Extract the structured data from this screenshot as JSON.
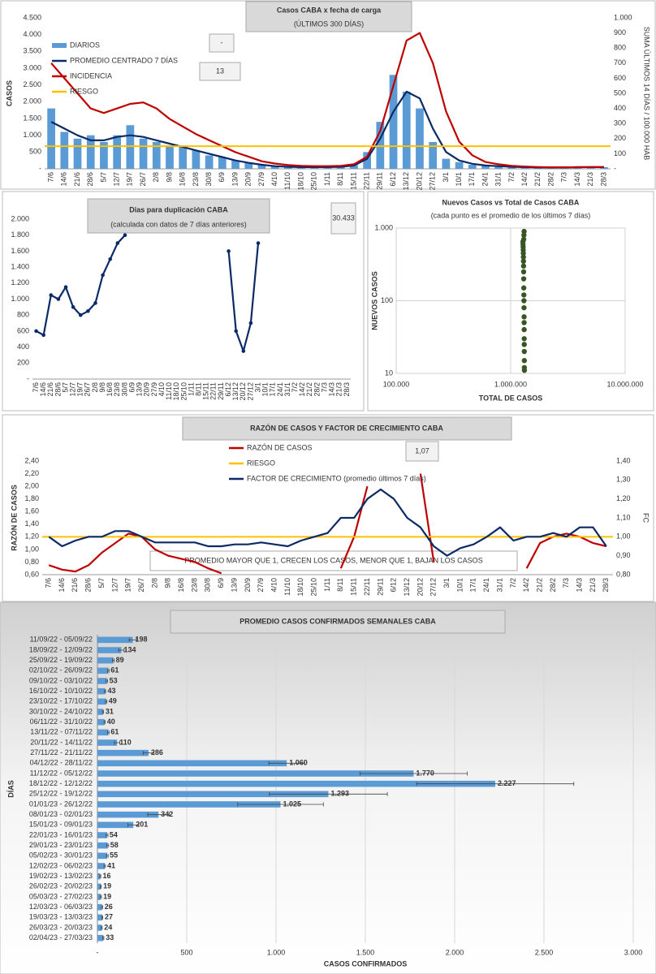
{
  "chart_data": [
    {
      "type": "bar-line",
      "title": "Casos CABA x fecha de carga",
      "subtitle": "(ÚLTIMOS 300 DÍAS)",
      "y_label": "CASOS",
      "y2_label": "SUMA ÚLTIMOS 14 DÍAS / 100.000 HAB",
      "annotations": [
        "-",
        "13"
      ],
      "legend": true,
      "grid": false,
      "categories": [
        "7/6",
        "14/6",
        "21/6",
        "28/6",
        "5/7",
        "12/7",
        "19/7",
        "26/7",
        "2/8",
        "9/8",
        "16/8",
        "23/8",
        "30/8",
        "6/9",
        "13/9",
        "20/9",
        "27/9",
        "4/10",
        "11/10",
        "18/10",
        "25/10",
        "1/11",
        "8/11",
        "15/11",
        "22/11",
        "29/11",
        "6/12",
        "13/12",
        "20/12",
        "27/12",
        "3/1",
        "10/1",
        "17/1",
        "24/1",
        "31/1",
        "7/2",
        "14/2",
        "21/2",
        "28/2",
        "7/3",
        "14/3",
        "21/3",
        "28/3"
      ],
      "series": [
        {
          "name": "DIARIOS",
          "type": "bar",
          "color": "#5b9bd5",
          "values": [
            1800,
            1100,
            900,
            1000,
            800,
            1000,
            1300,
            900,
            800,
            700,
            700,
            550,
            400,
            350,
            250,
            180,
            130,
            80,
            60,
            50,
            50,
            55,
            70,
            120,
            500,
            1400,
            2800,
            2300,
            1800,
            800,
            300,
            200,
            120,
            90,
            70,
            60,
            45,
            40,
            40,
            40,
            60,
            50,
            50
          ]
        },
        {
          "name": "PROMEDIO CENTRADO 7 DÍAS",
          "color": "#0b2a66",
          "values": [
            1400,
            1200,
            1000,
            850,
            850,
            950,
            1000,
            950,
            850,
            750,
            650,
            550,
            450,
            350,
            250,
            180,
            120,
            80,
            60,
            50,
            50,
            50,
            60,
            100,
            300,
            900,
            1700,
            2300,
            2100,
            1200,
            500,
            250,
            150,
            100,
            80,
            60,
            50,
            40,
            40,
            40,
            50,
            50,
            50
          ]
        },
        {
          "name": "INCIDENCIA",
          "color": "#c00000",
          "axis": "y2",
          "values": [
            700,
            600,
            500,
            400,
            370,
            400,
            430,
            440,
            400,
            330,
            280,
            230,
            190,
            150,
            110,
            80,
            50,
            35,
            25,
            20,
            18,
            18,
            20,
            30,
            80,
            250,
            550,
            850,
            900,
            700,
            380,
            180,
            90,
            45,
            30,
            20,
            15,
            12,
            10,
            10,
            10,
            12,
            12
          ]
        },
        {
          "name": "RIESGO",
          "color": "#ffc000",
          "axis": "y2",
          "value": 150
        }
      ],
      "ylim": [
        0,
        4500
      ],
      "yticks": [
        {
          "value": 0,
          "label": "-"
        },
        500,
        {
          "value": 1000,
          "label": "1.000"
        },
        {
          "value": 1500,
          "label": "1.500"
        },
        {
          "value": 2000,
          "label": "2.000"
        },
        {
          "value": 2500,
          "label": "2.500"
        },
        {
          "value": 3000,
          "label": "3.000"
        },
        {
          "value": 3500,
          "label": "3.500"
        },
        {
          "value": 4000,
          "label": "4.000"
        },
        {
          "value": 4500,
          "label": "4.500"
        }
      ],
      "y2lim": [
        0,
        1000
      ],
      "y2ticks": [
        {
          "value": 0,
          "label": "-"
        },
        100,
        200,
        300,
        400,
        500,
        600,
        700,
        800,
        900,
        {
          "value": 1000,
          "label": "1.000"
        }
      ]
    },
    {
      "type": "line",
      "title": "Dias para duplicación CABA",
      "subtitle": "(calculada con datos de 7 días anteriores)",
      "annotations": [
        "30.433"
      ],
      "grid": false,
      "categories": [
        "7/6",
        "14/6",
        "21/6",
        "28/6",
        "5/7",
        "12/7",
        "19/7",
        "26/7",
        "2/8",
        "9/8",
        "16/8",
        "23/8",
        "30/8",
        "6/9",
        "13/9",
        "20/9",
        "27/9",
        "4/10",
        "11/10",
        "18/10",
        "25/10",
        "1/11",
        "8/11",
        "15/11",
        "22/11",
        "29/11",
        "6/12",
        "13/12",
        "20/12",
        "27/12",
        "3/1",
        "10/1",
        "17/1",
        "24/1",
        "31/1",
        "7/2",
        "14/2",
        "21/2",
        "28/2",
        "7/3",
        "14/3",
        "21/3",
        "28/3"
      ],
      "series": [
        {
          "name": null,
          "color": "#0b2a66",
          "markers": true,
          "values": [
            600,
            550,
            1050,
            1000,
            1150,
            900,
            800,
            850,
            950,
            1300,
            1500,
            1700,
            1800,
            null,
            null,
            null,
            null,
            null,
            null,
            null,
            null,
            null,
            null,
            null,
            null,
            null,
            1600,
            600,
            350,
            700,
            1700,
            null,
            null,
            null,
            null,
            null,
            null,
            null,
            null,
            null,
            null,
            null,
            null
          ]
        }
      ],
      "ylim": [
        0,
        2000
      ],
      "yticks": [
        {
          "value": 0,
          "label": "-"
        },
        200,
        400,
        600,
        800,
        {
          "value": 1000,
          "label": "1.000"
        },
        {
          "value": 1200,
          "label": "1.200"
        },
        {
          "value": 1400,
          "label": "1.400"
        },
        {
          "value": 1600,
          "label": "1.600"
        },
        {
          "value": 1800,
          "label": "1.800"
        },
        {
          "value": 2000,
          "label": "2.000"
        }
      ]
    },
    {
      "type": "scatter",
      "title": "Nuevos Casos vs Total de Casos CABA",
      "subtitle": "(cada punto es el promedio de los últimos 7 días)",
      "x_label": "TOTAL DE CASOS",
      "y_label": "NUEVOS CASOS",
      "log_x": true,
      "log_y": true,
      "grid": true,
      "color": "#375623",
      "x": [
        1280000,
        1282000,
        1285000,
        1287000,
        1290000,
        1292000,
        1294000,
        1296000,
        1298000,
        1300000,
        1302000,
        1304000,
        1306000,
        1308000,
        1310000,
        1311000,
        1312000,
        1313000,
        1314000,
        1315000,
        1316000,
        1317000,
        1318000,
        1300000,
        1305000,
        1310000
      ],
      "y": [
        650,
        600,
        550,
        500,
        450,
        400,
        350,
        300,
        250,
        200,
        150,
        120,
        100,
        80,
        60,
        50,
        40,
        30,
        25,
        20,
        15,
        12,
        11,
        700,
        800,
        900
      ],
      "xlim": [
        100000,
        10000000
      ],
      "xticks": [
        {
          "value": 100000,
          "label": "100.000"
        },
        {
          "value": 1000000,
          "label": "1.000.000"
        },
        {
          "value": 10000000,
          "label": "10.000.000"
        }
      ],
      "ylim": [
        10,
        1000
      ],
      "yticks": [
        10,
        100,
        {
          "value": 1000,
          "label": "1.000"
        }
      ]
    },
    {
      "type": "line",
      "title": "RAZÓN DE CASOS Y FACTOR DE CRECIMIENTO CABA",
      "y_label": "RAZÓN DE CASOS",
      "y2_label": "FC",
      "annotations": [
        "1,07",
        "PROMEDIO MAYOR QUE 1, CRECEN LOS CASOS, MENOR QUE 1, BAJAN LOS CASOS"
      ],
      "legend": true,
      "grid": false,
      "categories": [
        "7/6",
        "14/6",
        "21/6",
        "28/6",
        "5/7",
        "12/7",
        "19/7",
        "26/7",
        "2/8",
        "9/8",
        "16/8",
        "23/8",
        "30/8",
        "6/9",
        "13/9",
        "20/9",
        "27/9",
        "4/10",
        "11/10",
        "18/10",
        "25/10",
        "1/11",
        "8/11",
        "15/11",
        "22/11",
        "29/11",
        "6/12",
        "13/12",
        "20/12",
        "27/12",
        "3/1",
        "10/1",
        "17/1",
        "24/1",
        "31/1",
        "7/2",
        "14/2",
        "21/2",
        "28/2",
        "7/3",
        "14/3",
        "21/3",
        "28/3"
      ],
      "series": [
        {
          "name": "RAZÓN DE CASOS",
          "color": "#c00000",
          "values": [
            0.75,
            0.68,
            0.65,
            0.75,
            0.95,
            1.1,
            1.25,
            1.2,
            1.0,
            0.9,
            0.85,
            0.8,
            0.7,
            0.62,
            null,
            null,
            null,
            null,
            null,
            null,
            null,
            null,
            0.7,
            1.2,
            2.0,
            null,
            null,
            null,
            2.2,
            0.8,
            null,
            null,
            null,
            null,
            null,
            null,
            0.7,
            1.1,
            1.2,
            1.25,
            1.2,
            1.1,
            1.05
          ]
        },
        {
          "name": "RIESGO",
          "color": "#ffc000",
          "value": 1.2
        },
        {
          "name": "FACTOR DE CRECIMIENTO (promedio últimos 7 días)",
          "color": "#0b2a66",
          "axis": "y2",
          "values": [
            1.0,
            0.95,
            0.98,
            1.0,
            1.0,
            1.03,
            1.03,
            1.0,
            0.97,
            0.97,
            0.97,
            0.97,
            0.95,
            0.95,
            0.96,
            0.96,
            0.97,
            0.96,
            0.95,
            0.98,
            1.0,
            1.02,
            1.1,
            1.1,
            1.2,
            1.25,
            1.2,
            1.1,
            1.05,
            0.95,
            0.9,
            0.94,
            0.96,
            1.0,
            1.05,
            0.98,
            1.0,
            1.0,
            1.02,
            1.0,
            1.05,
            1.05,
            0.95
          ]
        }
      ],
      "ylim": [
        0.6,
        2.4
      ],
      "yticks": [
        {
          "value": 0.6,
          "label": "0,60"
        },
        {
          "value": 0.8,
          "label": "0,80"
        },
        {
          "value": 1.0,
          "label": "1,00"
        },
        {
          "value": 1.2,
          "label": "1,20"
        },
        {
          "value": 1.4,
          "label": "1,40"
        },
        {
          "value": 1.6,
          "label": "1,60"
        },
        {
          "value": 1.8,
          "label": "1,80"
        },
        {
          "value": 2.0,
          "label": "2,00"
        },
        {
          "value": 2.2,
          "label": "2,20"
        },
        {
          "value": 2.4,
          "label": "2,40"
        }
      ],
      "y2lim": [
        0.8,
        1.4
      ],
      "y2ticks": [
        {
          "value": 0.8,
          "label": "0,80"
        },
        {
          "value": 0.9,
          "label": "0,90"
        },
        {
          "value": 1.0,
          "label": "1,00"
        },
        {
          "value": 1.1,
          "label": "1,10"
        },
        {
          "value": 1.2,
          "label": "1,20"
        },
        {
          "value": 1.3,
          "label": "1,30"
        },
        {
          "value": 1.4,
          "label": "1,40"
        }
      ]
    },
    {
      "type": "barh",
      "title": "PROMEDIO CASOS CONFIRMADOS SEMANALES CABA",
      "x_label": "CASOS CONFIRMADOS",
      "y_label": "DÍAS",
      "grid": true,
      "color": "#5b9bd5",
      "categories": [
        "11/09/22 - 05/09/22",
        "18/09/22 - 12/09/22",
        "25/09/22 - 19/09/22",
        "02/10/22 - 26/09/22",
        "09/10/22 - 03/10/22",
        "16/10/22 - 10/10/22",
        "23/10/22 - 17/10/22",
        "30/10/22 - 24/10/22",
        "06/11/22 - 31/10/22",
        "13/11/22 - 07/11/22",
        "20/11/22 - 14/11/22",
        "27/11/22 - 21/11/22",
        "04/12/22 - 28/11/22",
        "11/12/22 - 05/12/22",
        "18/12/22 - 12/12/22",
        "25/12/22 - 19/12/22",
        "01/01/23 - 26/12/22",
        "08/01/23 - 02/01/23",
        "15/01/23 - 09/01/23",
        "22/01/23 - 16/01/23",
        "29/01/23 - 23/01/23",
        "05/02/23 - 30/01/23",
        "12/02/23 - 06/02/23",
        "19/02/23 - 13/02/23",
        "26/02/23 - 20/02/23",
        "05/03/23 - 27/02/23",
        "12/03/23 - 06/03/23",
        "19/03/23 - 13/03/23",
        "26/03/23 - 20/03/23",
        "02/04/23 - 27/03/23"
      ],
      "values": [
        198,
        134,
        89,
        61,
        53,
        43,
        49,
        31,
        40,
        61,
        110,
        286,
        1060,
        1770,
        2227,
        1293,
        1025,
        342,
        201,
        54,
        58,
        55,
        41,
        16,
        19,
        19,
        26,
        27,
        24,
        33
      ],
      "value_labels": [
        "198",
        "134",
        "89",
        "61",
        "53",
        "43",
        "49",
        "31",
        "40",
        "61",
        "110",
        "286",
        "1.060",
        "1.770",
        "2.227",
        "1.293",
        "1.025",
        "342",
        "201",
        "54",
        "58",
        "55",
        "41",
        "16",
        "19",
        "19",
        "26",
        "27",
        "24",
        "33"
      ],
      "errors": [
        20,
        15,
        5,
        4,
        4,
        3,
        4,
        3,
        3,
        4,
        15,
        30,
        100,
        300,
        440,
        330,
        240,
        60,
        30,
        5,
        5,
        5,
        4,
        3,
        3,
        4,
        3,
        3,
        3,
        3
      ],
      "xlim": [
        0,
        3000
      ],
      "xticks": [
        {
          "value": 0,
          "label": "-"
        },
        500,
        {
          "value": 1000,
          "label": "1.000"
        },
        {
          "value": 1500,
          "label": "1.500"
        },
        {
          "value": 2000,
          "label": "2.000"
        },
        {
          "value": 2500,
          "label": "2.500"
        },
        {
          "value": 3000,
          "label": "3.000"
        }
      ]
    }
  ]
}
